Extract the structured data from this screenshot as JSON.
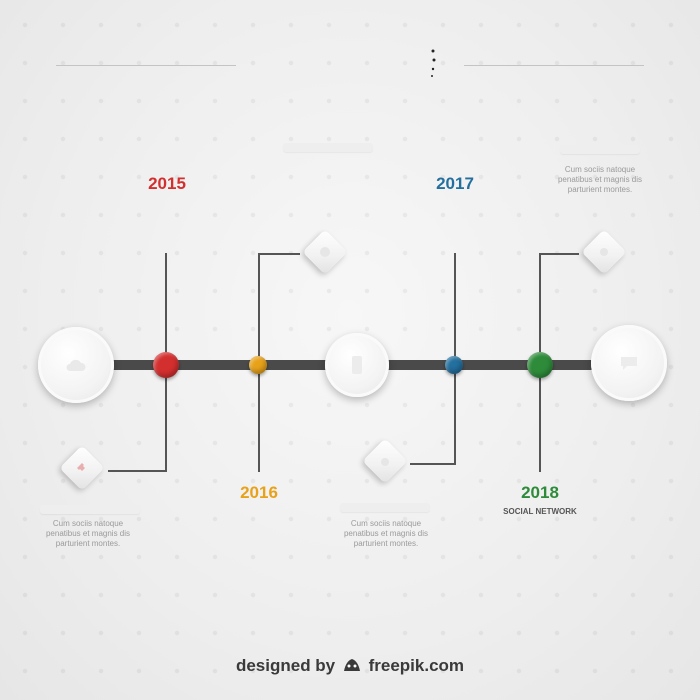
{
  "credit": {
    "prefix": "designed by",
    "brand": "freepik.com"
  },
  "colors": {
    "red": "#d32f2f",
    "yellow": "#f0a500",
    "blue": "#1e7bb8",
    "green": "#2e8b3a",
    "axis": "#4a4a4a"
  },
  "milestones": {
    "y2015": {
      "year": "2015",
      "color": "#d32f2f"
    },
    "y2016": {
      "year": "2016",
      "color": "#e8a21a"
    },
    "y2017": {
      "year": "2017",
      "color": "#236f9e"
    },
    "y2018": {
      "year": "2018",
      "color": "#2e8b3a",
      "label": "SOCIAL NETWORK"
    }
  },
  "descriptions": {
    "top_right": "Cum sociis natoque penatibus et magnis dis parturient montes.",
    "bottom_left": "Cum sociis natoque penatibus et magnis dis parturient montes.",
    "bottom_center": "Cum sociis natoque penatibus et magnis dis parturient montes."
  },
  "icons": {
    "circle_left": "cloud-icon",
    "circle_center": "phone-icon",
    "circle_right": "chat-icon",
    "diamond_2015": "puzzle-icon",
    "diamond_2016": "globe-icon",
    "diamond_2017": "apple-icon",
    "diamond_2018": "gear-icon"
  }
}
